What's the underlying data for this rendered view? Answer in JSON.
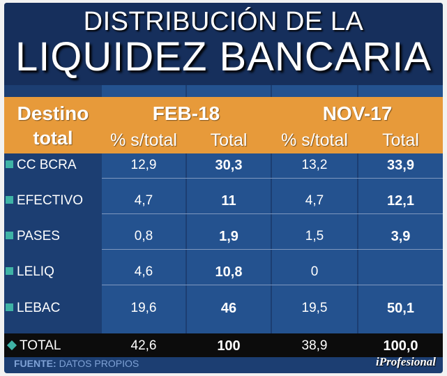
{
  "title": {
    "line1": "DISTRIBUCIÓN DE LA",
    "line2": "LIQUIDEZ BANCARIA"
  },
  "table": {
    "col_destino": "Destino",
    "col_destino2": "total",
    "group1": "FEB-18",
    "group2": "NOV-17",
    "sub_pct": "% s/total",
    "sub_total": "Total"
  },
  "rows": [
    {
      "label": "CC BCRA",
      "feb_pct": "12,9",
      "feb_total": "30,3",
      "nov_pct": "13,2",
      "nov_total": "33,9"
    },
    {
      "label": "EFECTIVO",
      "feb_pct": "4,7",
      "feb_total": "11",
      "nov_pct": "4,7",
      "nov_total": "12,1"
    },
    {
      "label": "PASES",
      "feb_pct": "0,8",
      "feb_total": "1,9",
      "nov_pct": "1,5",
      "nov_total": "3,9"
    },
    {
      "label": "LELIQ",
      "feb_pct": "4,6",
      "feb_total": "10,8",
      "nov_pct": "0",
      "nov_total": ""
    },
    {
      "label": "LEBAC",
      "feb_pct": "19,6",
      "feb_total": "46",
      "nov_pct": "19,5",
      "nov_total": "50,1"
    }
  ],
  "total": {
    "label": "TOTAL",
    "feb_pct": "42,6",
    "feb_total": "100",
    "nov_pct": "38,9",
    "nov_total": "100,0"
  },
  "footer": {
    "source_label": "FUENTE:",
    "source_value": "DATOS PROPIOS",
    "brand": "iProfesional"
  },
  "colors": {
    "background": "#1c3e72",
    "header": "#e79a3a",
    "stripe": "#24528f",
    "accent": "#3fb3a6",
    "total_bar": "#0c0c0c"
  },
  "chart_data": {
    "type": "table",
    "title": "DISTRIBUCIÓN DE LA LIQUIDEZ BANCARIA",
    "columns": [
      "Destino total",
      "FEB-18 % s/total",
      "FEB-18 Total",
      "NOV-17 % s/total",
      "NOV-17 Total"
    ],
    "rows": [
      [
        "CC BCRA",
        12.9,
        30.3,
        13.2,
        33.9
      ],
      [
        "EFECTIVO",
        4.7,
        11,
        4.7,
        12.1
      ],
      [
        "PASES",
        0.8,
        1.9,
        1.5,
        3.9
      ],
      [
        "LELIQ",
        4.6,
        10.8,
        0,
        null
      ],
      [
        "LEBAC",
        19.6,
        46,
        19.5,
        50.1
      ],
      [
        "TOTAL",
        42.6,
        100,
        38.9,
        100.0
      ]
    ]
  }
}
